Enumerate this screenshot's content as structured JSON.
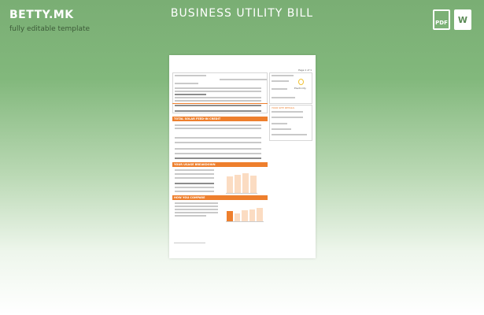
{
  "header": {
    "brand": "BETTY.MK",
    "tagline": "fully editable template",
    "title": "BUSINESS UTILITY BILL",
    "pdf_label": "PDF",
    "word_label": "W"
  },
  "document": {
    "page_label": "Page 1 of 1",
    "sections": [
      "TOTAL SOLAR FEED-IN CREDIT",
      "YOUR USAGE BREAKDOWN",
      "HOW YOU COMPARE"
    ],
    "site_details_title": "YOUR SITE DETAILS",
    "service_label": "Electricity",
    "usage_chart": {
      "bars": [
        0.78,
        0.86,
        0.92,
        0.8
      ]
    },
    "compare_chart": {
      "bars": [
        0.62,
        0.5,
        0.66,
        0.7,
        0.82
      ],
      "highlight_index": 0
    }
  },
  "colors": {
    "accent": "#ee7f2d",
    "background": "#7fb37a"
  }
}
